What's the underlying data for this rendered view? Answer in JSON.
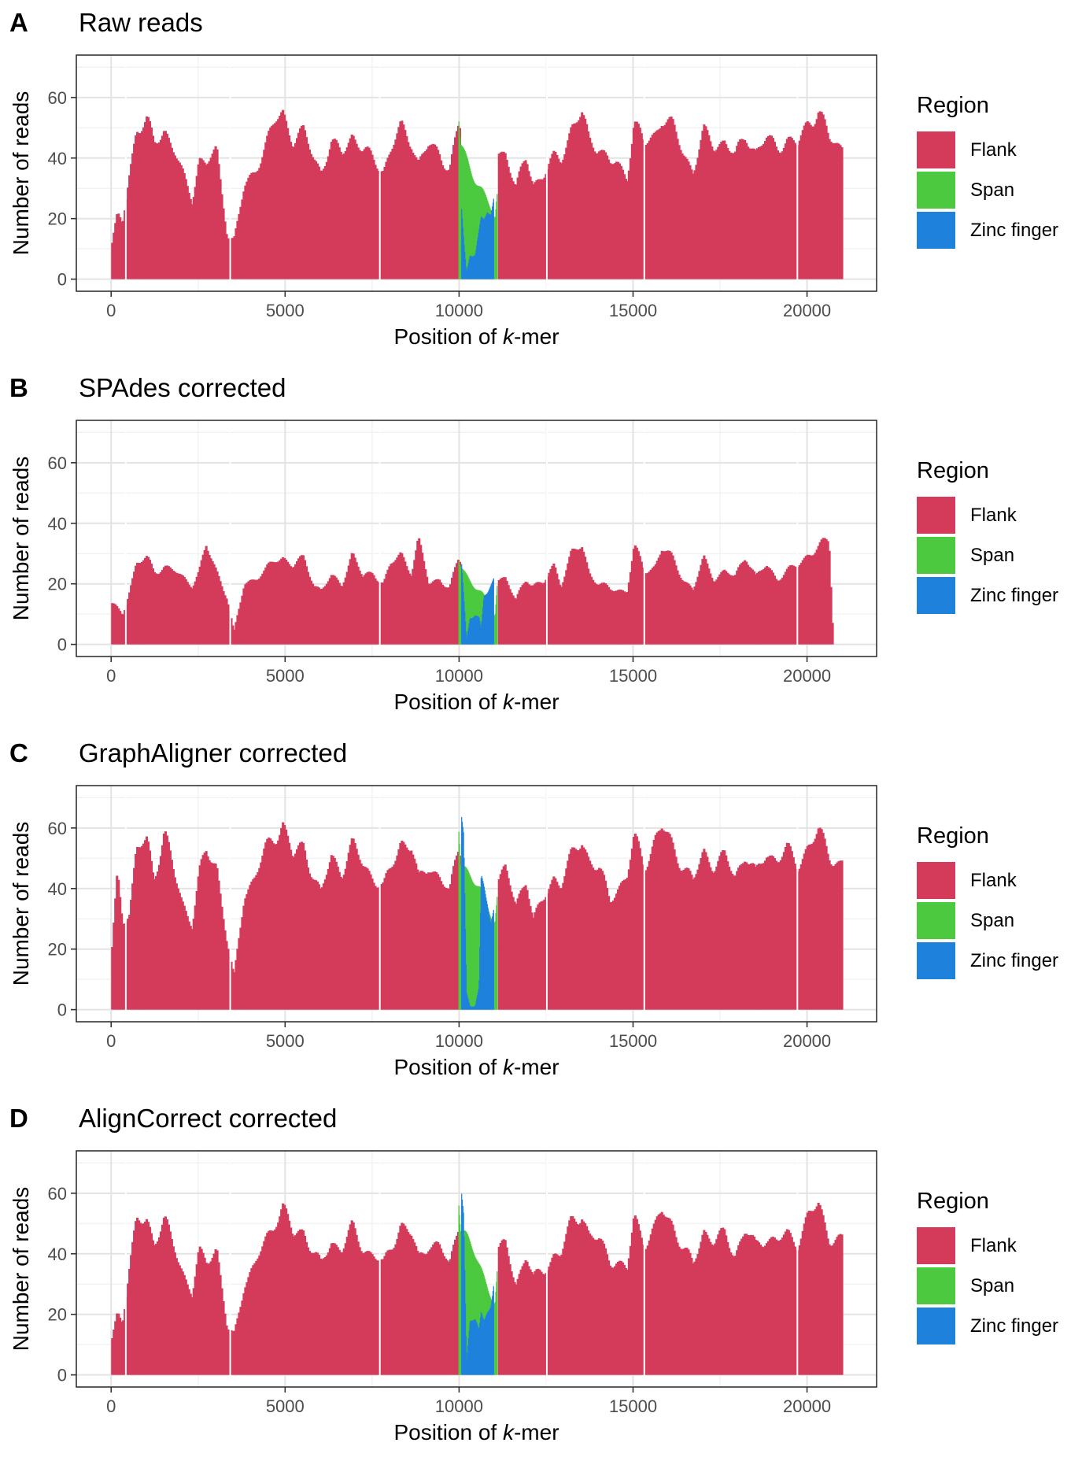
{
  "colors": {
    "flank": "#D43A5A",
    "span": "#4CC93F",
    "zinc": "#1E82DC"
  },
  "chart_data": [
    {
      "type": "bar",
      "panel_label": "A",
      "title": "Raw reads",
      "xlabel": "Position of k-mer",
      "ylabel": "Number of reads",
      "xlim": [
        -1000,
        22000
      ],
      "ylim": [
        -4,
        74
      ],
      "x_ticks": [
        0,
        5000,
        10000,
        15000,
        20000
      ],
      "y_ticks": [
        0,
        20,
        40,
        60
      ],
      "legend": {
        "title": "Region",
        "position": "right",
        "entries": [
          "Flank",
          "Span",
          "Zinc finger"
        ]
      },
      "series": [
        {
          "name": "Flank",
          "x": [
            0,
            150,
            300,
            500,
            700,
            1000,
            1200,
            1500,
            1800,
            2000,
            2300,
            2500,
            2700,
            3000,
            3300,
            3500,
            3800,
            4100,
            4400,
            4700,
            4900,
            5200,
            5500,
            5800,
            6000,
            6300,
            6600,
            6900,
            7200,
            7500,
            7800,
            8000,
            8300,
            8600,
            8800,
            9100,
            9400,
            9700,
            9950,
            11100,
            11300,
            11600,
            11900,
            12100,
            12400,
            12700,
            12900,
            13200,
            13500,
            13700,
            14000,
            14300,
            14500,
            14800,
            15000,
            15300,
            15600,
            15800,
            16100,
            16400,
            16700,
            17000,
            17300,
            17600,
            17900,
            18200,
            18500,
            18800,
            19100,
            19400,
            19700,
            20000,
            20300,
            20600,
            20900,
            21000
          ],
          "values": [
            12,
            21,
            18,
            35,
            50,
            52,
            44,
            50,
            42,
            35,
            26,
            40,
            38,
            42,
            15,
            13,
            30,
            36,
            44,
            52,
            55,
            46,
            48,
            40,
            36,
            44,
            42,
            48,
            42,
            40,
            36,
            42,
            50,
            46,
            38,
            44,
            42,
            36,
            50,
            42,
            42,
            30,
            40,
            32,
            34,
            40,
            40,
            50,
            54,
            46,
            44,
            38,
            38,
            34,
            52,
            44,
            48,
            54,
            50,
            42,
            36,
            48,
            44,
            46,
            40,
            48,
            42,
            46,
            44,
            46,
            44,
            52,
            56,
            46,
            44,
            44
          ]
        },
        {
          "name": "Span",
          "x": [
            9980,
            10030,
            11020,
            11080
          ],
          "values": [
            52,
            44,
            20,
            28
          ]
        },
        {
          "name": "Zinc finger",
          "x": [
            10060,
            10120,
            10200,
            10300,
            10450,
            10560,
            10620,
            10700,
            10800,
            10900,
            10980
          ],
          "values": [
            22,
            12,
            2,
            9,
            9,
            16,
            20,
            19,
            22,
            21,
            26
          ]
        }
      ]
    },
    {
      "type": "bar",
      "panel_label": "B",
      "title": "SPAdes corrected",
      "xlabel": "Position of k-mer",
      "ylabel": "Number of reads",
      "xlim": [
        -1000,
        22000
      ],
      "ylim": [
        -4,
        74
      ],
      "x_ticks": [
        0,
        5000,
        10000,
        15000,
        20000
      ],
      "y_ticks": [
        0,
        20,
        40,
        60
      ],
      "legend": {
        "title": "Region",
        "position": "right",
        "entries": [
          "Flank",
          "Span",
          "Zinc finger"
        ]
      },
      "series": [
        {
          "name": "Flank",
          "x": [
            0,
            150,
            300,
            500,
            700,
            1000,
            1200,
            1500,
            1800,
            2000,
            2300,
            2500,
            2700,
            3000,
            3300,
            3500,
            3800,
            4100,
            4400,
            4700,
            4900,
            5200,
            5500,
            5800,
            6000,
            6300,
            6600,
            6900,
            7200,
            7500,
            7800,
            8000,
            8300,
            8600,
            8800,
            9100,
            9400,
            9700,
            9950,
            11100,
            11300,
            11600,
            11900,
            12100,
            12400,
            12700,
            12900,
            13200,
            13500,
            13700,
            14000,
            14300,
            14500,
            14800,
            15000,
            15300,
            15600,
            15800,
            16100,
            16400,
            16700,
            17000,
            17300,
            17600,
            17900,
            18200,
            18500,
            18800,
            19100,
            19400,
            19700,
            20000,
            20300,
            20600,
            20700
          ],
          "values": [
            13,
            11,
            10,
            18,
            27,
            28,
            24,
            26,
            24,
            22,
            20,
            24,
            32,
            24,
            16,
            3,
            20,
            22,
            24,
            28,
            29,
            26,
            28,
            20,
            18,
            22,
            20,
            30,
            22,
            24,
            20,
            26,
            30,
            24,
            34,
            20,
            22,
            18,
            28,
            22,
            22,
            14,
            22,
            20,
            20,
            26,
            20,
            30,
            32,
            24,
            20,
            18,
            18,
            18,
            32,
            24,
            26,
            32,
            28,
            22,
            18,
            28,
            22,
            24,
            22,
            30,
            22,
            26,
            22,
            24,
            26,
            30,
            32,
            34,
            8
          ]
        },
        {
          "name": "Span",
          "x": [
            9980,
            10030,
            11020,
            11080
          ],
          "values": [
            28,
            26,
            10,
            20
          ]
        },
        {
          "name": "Zinc finger",
          "x": [
            10060,
            10120,
            10200,
            10300,
            10450,
            10560,
            10620,
            10700,
            10800,
            10900,
            10980
          ],
          "values": [
            26,
            16,
            2,
            10,
            10,
            8,
            4,
            15,
            17,
            20,
            22
          ]
        }
      ]
    },
    {
      "type": "bar",
      "panel_label": "C",
      "title": "GraphAligner corrected",
      "xlabel": "Position of k-mer",
      "ylabel": "Number of reads",
      "xlim": [
        -1000,
        22000
      ],
      "ylim": [
        -4,
        74
      ],
      "x_ticks": [
        0,
        5000,
        10000,
        15000,
        20000
      ],
      "y_ticks": [
        0,
        20,
        40,
        60
      ],
      "legend": {
        "title": "Region",
        "position": "right",
        "entries": [
          "Flank",
          "Span",
          "Zinc finger"
        ]
      },
      "series": [
        {
          "name": "Flank",
          "x": [
            0,
            150,
            300,
            500,
            700,
            1000,
            1200,
            1500,
            1800,
            2000,
            2300,
            2500,
            2700,
            3000,
            3300,
            3500,
            3800,
            4100,
            4400,
            4700,
            4900,
            5200,
            5500,
            5800,
            6000,
            6300,
            6600,
            6900,
            7200,
            7500,
            7800,
            8000,
            8300,
            8600,
            8800,
            9100,
            9400,
            9700,
            9950,
            11100,
            11300,
            11600,
            11900,
            12100,
            12400,
            12700,
            12900,
            13200,
            13500,
            13700,
            14000,
            14300,
            14500,
            14800,
            15000,
            15300,
            15600,
            15800,
            16100,
            16400,
            16700,
            17000,
            17300,
            17600,
            17900,
            18200,
            18500,
            18800,
            19100,
            19400,
            19700,
            20000,
            20300,
            20600,
            20900,
            21000
          ],
          "values": [
            20,
            45,
            30,
            32,
            52,
            56,
            44,
            58,
            44,
            36,
            28,
            44,
            52,
            48,
            22,
            10,
            38,
            44,
            52,
            58,
            62,
            50,
            54,
            44,
            38,
            50,
            46,
            54,
            48,
            44,
            40,
            46,
            56,
            54,
            42,
            48,
            44,
            38,
            54,
            44,
            46,
            34,
            44,
            30,
            36,
            44,
            42,
            50,
            56,
            50,
            46,
            36,
            40,
            44,
            56,
            48,
            56,
            60,
            54,
            48,
            42,
            52,
            48,
            50,
            44,
            52,
            44,
            52,
            50,
            52,
            48,
            54,
            58,
            52,
            48,
            48
          ]
        },
        {
          "name": "Span",
          "x": [
            9980,
            10030,
            11020,
            11080
          ],
          "values": [
            62,
            50,
            30,
            38
          ]
        },
        {
          "name": "Zinc finger",
          "x": [
            10060,
            10120,
            10200,
            10300,
            10450,
            10560,
            10620,
            10700,
            10800,
            10900,
            10980
          ],
          "values": [
            64,
            58,
            6,
            2,
            1,
            6,
            42,
            40,
            36,
            30,
            34
          ]
        }
      ]
    },
    {
      "type": "bar",
      "panel_label": "D",
      "title": "AlignCorrect corrected",
      "xlabel": "Position of k-mer",
      "ylabel": "Number of reads",
      "xlim": [
        -1000,
        22000
      ],
      "ylim": [
        -4,
        74
      ],
      "x_ticks": [
        0,
        5000,
        10000,
        15000,
        20000
      ],
      "y_ticks": [
        0,
        20,
        40,
        60
      ],
      "legend": {
        "title": "Region",
        "position": "right",
        "entries": [
          "Flank",
          "Span",
          "Zinc finger"
        ]
      },
      "series": [
        {
          "name": "Flank",
          "x": [
            0,
            150,
            300,
            500,
            700,
            1000,
            1200,
            1500,
            1800,
            2000,
            2300,
            2500,
            2700,
            3000,
            3300,
            3500,
            3800,
            4100,
            4400,
            4700,
            4900,
            5200,
            5500,
            5800,
            6000,
            6300,
            6600,
            6900,
            7200,
            7500,
            7800,
            8000,
            8300,
            8600,
            8800,
            9100,
            9400,
            9700,
            9950,
            11100,
            11300,
            11600,
            11900,
            12100,
            12400,
            12700,
            12900,
            13200,
            13500,
            13700,
            14000,
            14300,
            14500,
            14800,
            15000,
            15300,
            15600,
            15800,
            16100,
            16400,
            16700,
            17000,
            17300,
            17600,
            17900,
            18200,
            18500,
            18800,
            19100,
            19400,
            19700,
            20000,
            20300,
            20600,
            20900,
            21000
          ],
          "values": [
            12,
            21,
            18,
            35,
            50,
            52,
            44,
            50,
            42,
            35,
            26,
            40,
            38,
            42,
            15,
            13,
            30,
            36,
            44,
            52,
            55,
            46,
            48,
            40,
            36,
            44,
            42,
            48,
            42,
            40,
            36,
            42,
            50,
            46,
            38,
            44,
            42,
            36,
            50,
            42,
            42,
            30,
            40,
            32,
            34,
            40,
            40,
            50,
            54,
            46,
            44,
            38,
            38,
            34,
            52,
            44,
            48,
            54,
            50,
            42,
            36,
            48,
            44,
            46,
            40,
            48,
            42,
            46,
            44,
            46,
            44,
            52,
            56,
            46,
            44,
            44
          ]
        },
        {
          "name": "Span",
          "x": [
            9980,
            10030,
            11020,
            11080
          ],
          "values": [
            60,
            50,
            24,
            34
          ]
        },
        {
          "name": "Zinc finger",
          "x": [
            10060,
            10120,
            10200,
            10300,
            10450,
            10560,
            10620,
            10700,
            10800,
            10900,
            10980
          ],
          "values": [
            60,
            52,
            4,
            18,
            18,
            14,
            20,
            18,
            22,
            24,
            30
          ]
        }
      ]
    }
  ]
}
